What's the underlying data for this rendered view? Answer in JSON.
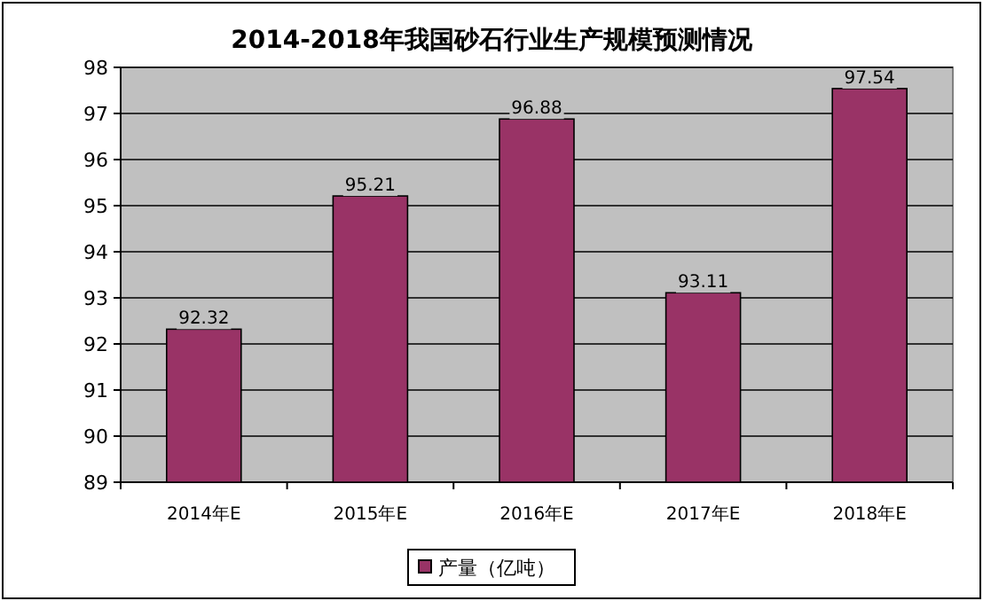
{
  "chart_data": {
    "type": "bar",
    "title": "2014-2018年我国砂石行业生产规模预测情况",
    "categories": [
      "2014年E",
      "2015年E",
      "2016年E",
      "2017年E",
      "2018年E"
    ],
    "series": [
      {
        "name": "产量（亿吨）",
        "color": "#993366",
        "values": [
          92.32,
          95.21,
          96.88,
          93.11,
          97.54
        ]
      }
    ],
    "ylim": [
      89,
      98
    ],
    "yticks": [
      89,
      90,
      91,
      92,
      93,
      94,
      95,
      96,
      97,
      98
    ],
    "grid": "y",
    "legend": "bottom",
    "data_labels": true
  }
}
